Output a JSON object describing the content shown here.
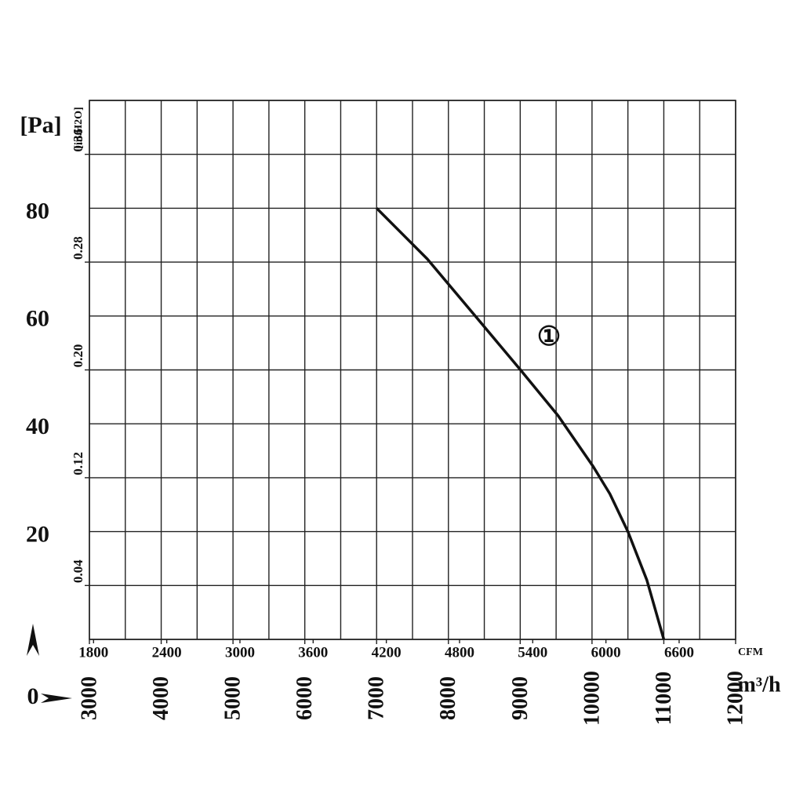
{
  "chart_data": {
    "type": "line",
    "y_label": "[Pa]",
    "y2_label": "[in.H2O]",
    "x_label": "m³/h",
    "x2_label": "CFM",
    "annotation": "①",
    "x": [
      7000,
      7705,
      8437,
      9004,
      9528,
      10020,
      10249,
      10500,
      10764,
      11000
    ],
    "series": [
      {
        "name": "①",
        "color": "#111111",
        "values": [
          80,
          70.6,
          59,
          50,
          41.5,
          32,
          27,
          20,
          11,
          0
        ]
      }
    ],
    "xlim": [
      3000,
      12000
    ],
    "xticks": [
      3000,
      4000,
      5000,
      6000,
      7000,
      8000,
      9000,
      10000,
      11000,
      12000
    ],
    "xminorticks": [
      3500,
      4500,
      5500,
      6500,
      7500,
      8500,
      9500,
      10500,
      11500
    ],
    "x2lim": [
      1766,
      7063
    ],
    "x2ticks": [
      1800,
      2400,
      3000,
      3600,
      4200,
      4800,
      5400,
      6000,
      6600
    ],
    "ylim": [
      0,
      100
    ],
    "yticks": [
      0,
      20,
      40,
      60,
      80
    ],
    "yminorticks": [
      10,
      30,
      50,
      70,
      90,
      100
    ],
    "y2lim": [
      0,
      0.4
    ],
    "y2ticks": [
      {
        "value": 0.04,
        "label": "0.04"
      },
      {
        "value": 0.12,
        "label": "0.12"
      },
      {
        "value": 0.2,
        "label": "0.20"
      },
      {
        "value": 0.28,
        "label": "0.28"
      },
      {
        "value": 0.36,
        "label": "0.36"
      }
    ],
    "grid": true
  }
}
